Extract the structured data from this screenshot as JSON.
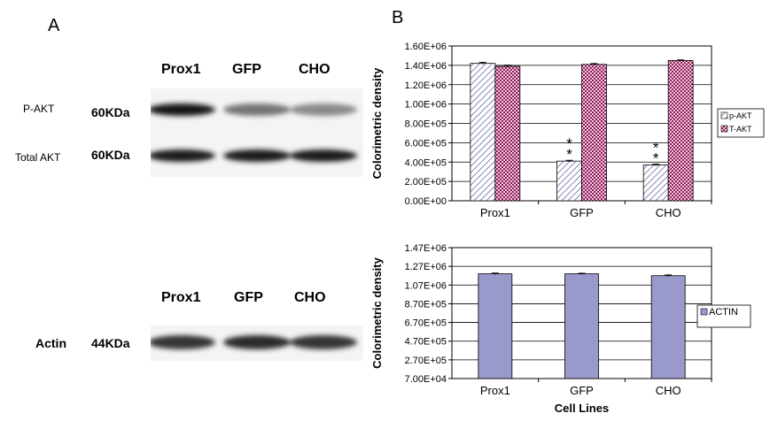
{
  "panel_a": {
    "letter": "A",
    "lanes": [
      "Prox1",
      "GFP",
      "CHO"
    ],
    "rows": [
      {
        "label": "P-AKT",
        "kda": "60KDa",
        "band_intensity": [
          1.0,
          0.55,
          0.45
        ]
      },
      {
        "label": "Total AKT",
        "kda": "60KDa",
        "band_intensity": [
          0.95,
          0.95,
          0.95
        ]
      }
    ],
    "actin_lanes": [
      "Prox1",
      "GFP",
      "CHO"
    ],
    "actin_row": {
      "label": "Actin",
      "kda": "44KDa",
      "band_intensity": [
        0.85,
        0.9,
        0.85
      ]
    }
  },
  "panel_b": {
    "letter": "B"
  },
  "colors": {
    "p_akt": "#c8c8e6",
    "t_akt": "#a8326e",
    "actin": "#9999cc",
    "plot_bg": "#ffffff"
  },
  "chart_data": [
    {
      "type": "bar",
      "categories": [
        "Prox1",
        "GFP",
        "CHO"
      ],
      "series": [
        {
          "name": "p-AKT",
          "values": [
            1420000,
            410000,
            370000
          ],
          "errors": [
            10000,
            8000,
            8000
          ]
        },
        {
          "name": "T-AKT",
          "values": [
            1390000,
            1410000,
            1450000
          ],
          "errors": [
            12000,
            8000,
            6000
          ]
        }
      ],
      "annotations": [
        {
          "category": "GFP",
          "series": "p-AKT",
          "text": "**"
        },
        {
          "category": "CHO",
          "series": "p-AKT",
          "text": "**"
        }
      ],
      "ylabel": "Colorimetric density",
      "xlabel": "",
      "ylim": [
        0,
        1600000
      ],
      "yticks": [
        "0.00E+00",
        "2.00E+05",
        "4.00E+05",
        "6.00E+05",
        "8.00E+05",
        "1.00E+06",
        "1.20E+06",
        "1.40E+06",
        "1.60E+06"
      ],
      "grid": true,
      "legend": "right"
    },
    {
      "type": "bar",
      "categories": [
        "Prox1",
        "GFP",
        "CHO"
      ],
      "series": [
        {
          "name": "ACTIN",
          "values": [
            1190000,
            1190000,
            1170000
          ],
          "errors": [
            8000,
            6000,
            8000
          ]
        }
      ],
      "ylabel": "Colorimetric density",
      "xlabel": "Cell Lines",
      "ylim": [
        70000,
        1470000
      ],
      "yticks": [
        "7.00E+04",
        "2.70E+05",
        "4.70E+05",
        "6.70E+05",
        "8.70E+05",
        "1.07E+06",
        "1.27E+06",
        "1.47E+06"
      ],
      "grid": true,
      "legend": "right"
    }
  ]
}
